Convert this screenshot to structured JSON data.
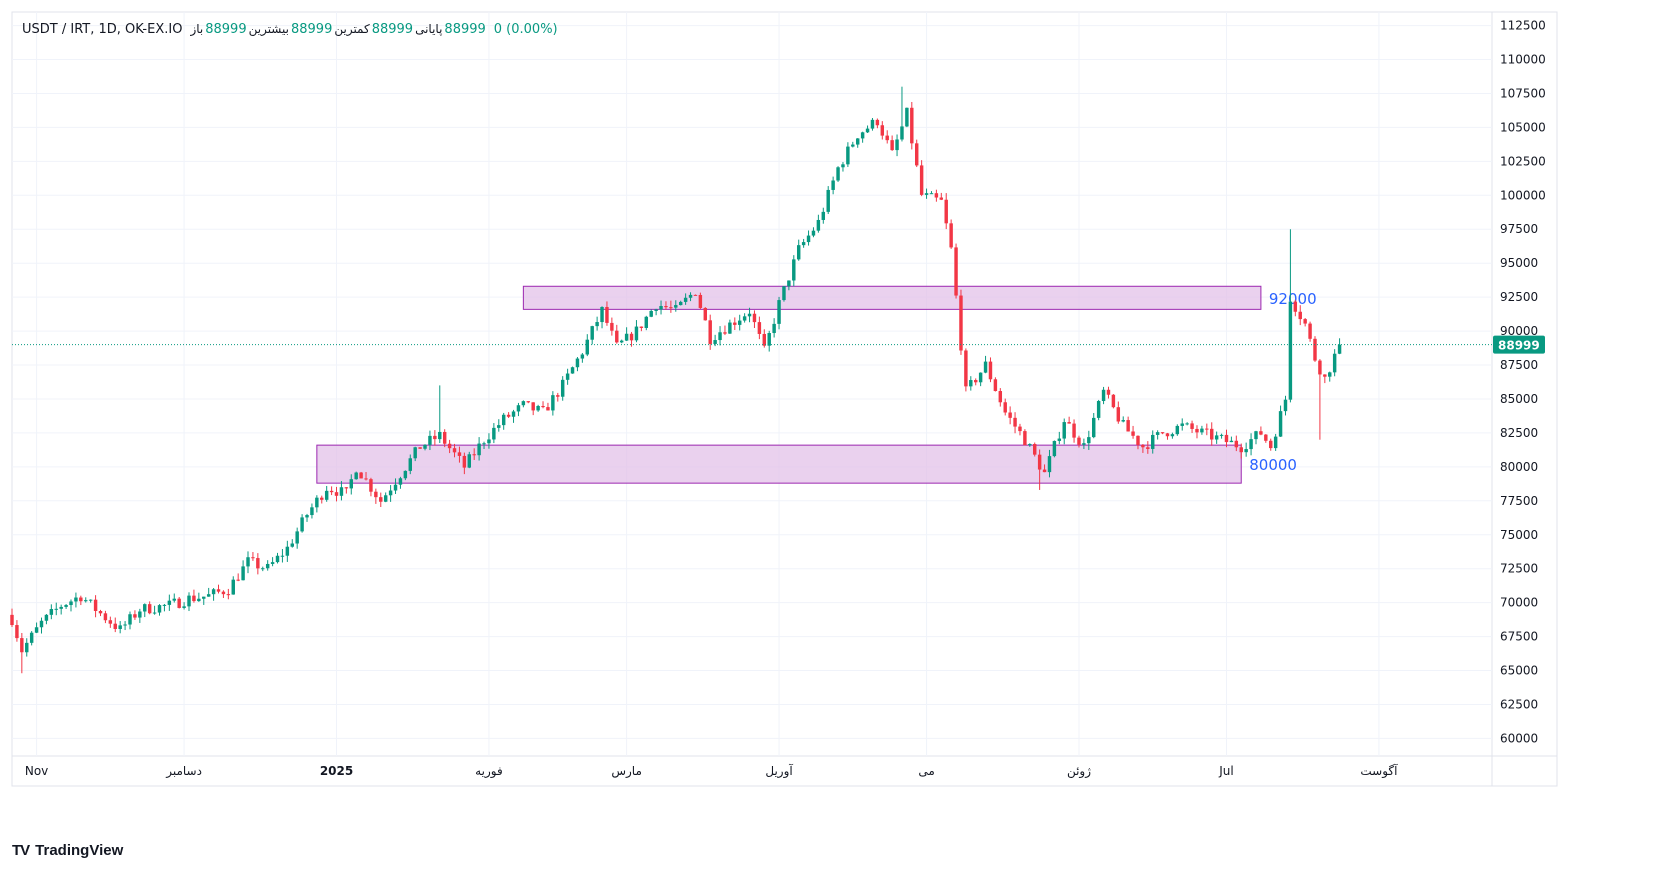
{
  "legend": {
    "symbol": "USDT / IRT, 1D, OK-EX.IO",
    "open_label": "باز",
    "open": "88999",
    "high_label": "بیشترین",
    "high": "88999",
    "low_label": "کمترین",
    "low": "88999",
    "close_label": "پایانی",
    "close": "88999",
    "change": "0 (0.00%)"
  },
  "branding": {
    "name": "TradingView"
  },
  "chart_data": {
    "type": "candlestick",
    "symbol": "USDT / IRT",
    "interval": "1D",
    "exchange": "OK-EX.IO",
    "y_axis": {
      "position": "right",
      "range": [
        59000,
        113500
      ],
      "ticks": [
        60000,
        62500,
        65000,
        67500,
        70000,
        72500,
        75000,
        77500,
        80000,
        82500,
        85000,
        87500,
        90000,
        92500,
        95000,
        97500,
        100000,
        102500,
        105000,
        107500,
        110000,
        112500
      ],
      "tick_labels": [
        "60000",
        "62500",
        "65000",
        "67500",
        "70000",
        "72500",
        "75000",
        "77500",
        "80000",
        "82500",
        "85000",
        "87500",
        "90000",
        "92500",
        "95000",
        "97500",
        "100000",
        "102500",
        "105000",
        "107500",
        "110000",
        "112500"
      ]
    },
    "x_axis": {
      "labels": [
        "Nov",
        "دسامبر",
        "2025",
        "فوریه",
        "مارس",
        "آوریل",
        "می",
        "ژوئن",
        "Jul",
        "آگوست"
      ],
      "label_dates": [
        "2024-11-01",
        "2024-12-01",
        "2025-01-01",
        "2025-02-01",
        "2025-03-01",
        "2025-04-01",
        "2025-05-01",
        "2025-06-01",
        "2025-07-01",
        "2025-08-01"
      ],
      "date_range": [
        "2024-10-27",
        "2025-08-24"
      ]
    },
    "grid": true,
    "last_price": {
      "value": 88999,
      "label": "88999",
      "color": "#089981"
    },
    "zones": [
      {
        "from": 91600,
        "to": 93300,
        "start": "2025-02-08",
        "end": "2025-07-08",
        "label": "92000",
        "fill": "#e1bee7",
        "stroke": "#9c27b0",
        "text_color": "#2962ff"
      },
      {
        "from": 78800,
        "to": 81600,
        "start": "2024-12-28",
        "end": "2025-07-04",
        "label": "80000",
        "fill": "#e1bee7",
        "stroke": "#9c27b0",
        "text_color": "#2962ff"
      }
    ],
    "up_color": "#089981",
    "down_color": "#f23645",
    "close_path": [
      [
        "2024-10-27",
        68800
      ],
      [
        "2024-10-29",
        66500
      ],
      [
        "2024-11-02",
        68500
      ],
      [
        "2024-11-06",
        69800
      ],
      [
        "2024-11-10",
        70500
      ],
      [
        "2024-11-14",
        69200
      ],
      [
        "2024-11-18",
        68000
      ],
      [
        "2024-11-22",
        69500
      ],
      [
        "2024-11-28",
        69800
      ],
      [
        "2024-12-02",
        70300
      ],
      [
        "2024-12-06",
        70500
      ],
      [
        "2024-12-10",
        71000
      ],
      [
        "2024-12-14",
        73000
      ],
      [
        "2024-12-18",
        72500
      ],
      [
        "2024-12-22",
        74000
      ],
      [
        "2024-12-26",
        76500
      ],
      [
        "2024-12-30",
        78500
      ],
      [
        "2025-01-03",
        78000
      ],
      [
        "2025-01-05",
        80000
      ],
      [
        "2025-01-10",
        77500
      ],
      [
        "2025-01-14",
        79500
      ],
      [
        "2025-01-18",
        81500
      ],
      [
        "2025-01-22",
        82300
      ],
      [
        "2025-01-27",
        80000
      ],
      [
        "2025-01-31",
        82000
      ],
      [
        "2025-02-04",
        83500
      ],
      [
        "2025-02-08",
        84500
      ],
      [
        "2025-02-12",
        84000
      ],
      [
        "2025-02-16",
        86000
      ],
      [
        "2025-02-20",
        88500
      ],
      [
        "2025-02-24",
        91500
      ],
      [
        "2025-02-27",
        88800
      ],
      [
        "2025-03-03",
        90000
      ],
      [
        "2025-03-07",
        92000
      ],
      [
        "2025-03-11",
        91500
      ],
      [
        "2025-03-15",
        93000
      ],
      [
        "2025-03-18",
        89500
      ],
      [
        "2025-03-22",
        90500
      ],
      [
        "2025-03-26",
        91500
      ],
      [
        "2025-03-29",
        88500
      ],
      [
        "2025-04-01",
        92000
      ],
      [
        "2025-04-05",
        96000
      ],
      [
        "2025-04-09",
        98000
      ],
      [
        "2025-04-13",
        102000
      ],
      [
        "2025-04-17",
        104500
      ],
      [
        "2025-04-21",
        105500
      ],
      [
        "2025-04-24",
        103000
      ],
      [
        "2025-04-27",
        106000
      ],
      [
        "2025-04-30",
        100000
      ],
      [
        "2025-05-04",
        99500
      ],
      [
        "2025-05-06",
        96000
      ],
      [
        "2025-05-09",
        85500
      ],
      [
        "2025-05-13",
        87500
      ],
      [
        "2025-05-17",
        84000
      ],
      [
        "2025-05-21",
        82000
      ],
      [
        "2025-05-25",
        79500
      ],
      [
        "2025-05-29",
        83500
      ],
      [
        "2025-06-02",
        81500
      ],
      [
        "2025-06-06",
        85500
      ],
      [
        "2025-06-10",
        83000
      ],
      [
        "2025-06-14",
        81500
      ],
      [
        "2025-06-18",
        82500
      ],
      [
        "2025-06-22",
        83000
      ],
      [
        "2025-06-26",
        82500
      ],
      [
        "2025-06-30",
        82000
      ],
      [
        "2025-07-04",
        81500
      ],
      [
        "2025-07-08",
        82500
      ],
      [
        "2025-07-10",
        81500
      ],
      [
        "2025-07-13",
        85000
      ],
      [
        "2025-07-14",
        92500
      ],
      [
        "2025-07-17",
        90500
      ],
      [
        "2025-07-19",
        88000
      ],
      [
        "2025-07-21",
        86500
      ],
      [
        "2025-07-24",
        88999
      ]
    ],
    "spikes": [
      {
        "date": "2024-10-29",
        "low": 64800
      },
      {
        "date": "2025-01-22",
        "high": 86000
      },
      {
        "date": "2025-04-26",
        "high": 108000
      },
      {
        "date": "2025-05-24",
        "low": 78300
      },
      {
        "date": "2025-07-14",
        "high": 97500
      },
      {
        "date": "2025-07-20",
        "low": 82000
      }
    ]
  }
}
